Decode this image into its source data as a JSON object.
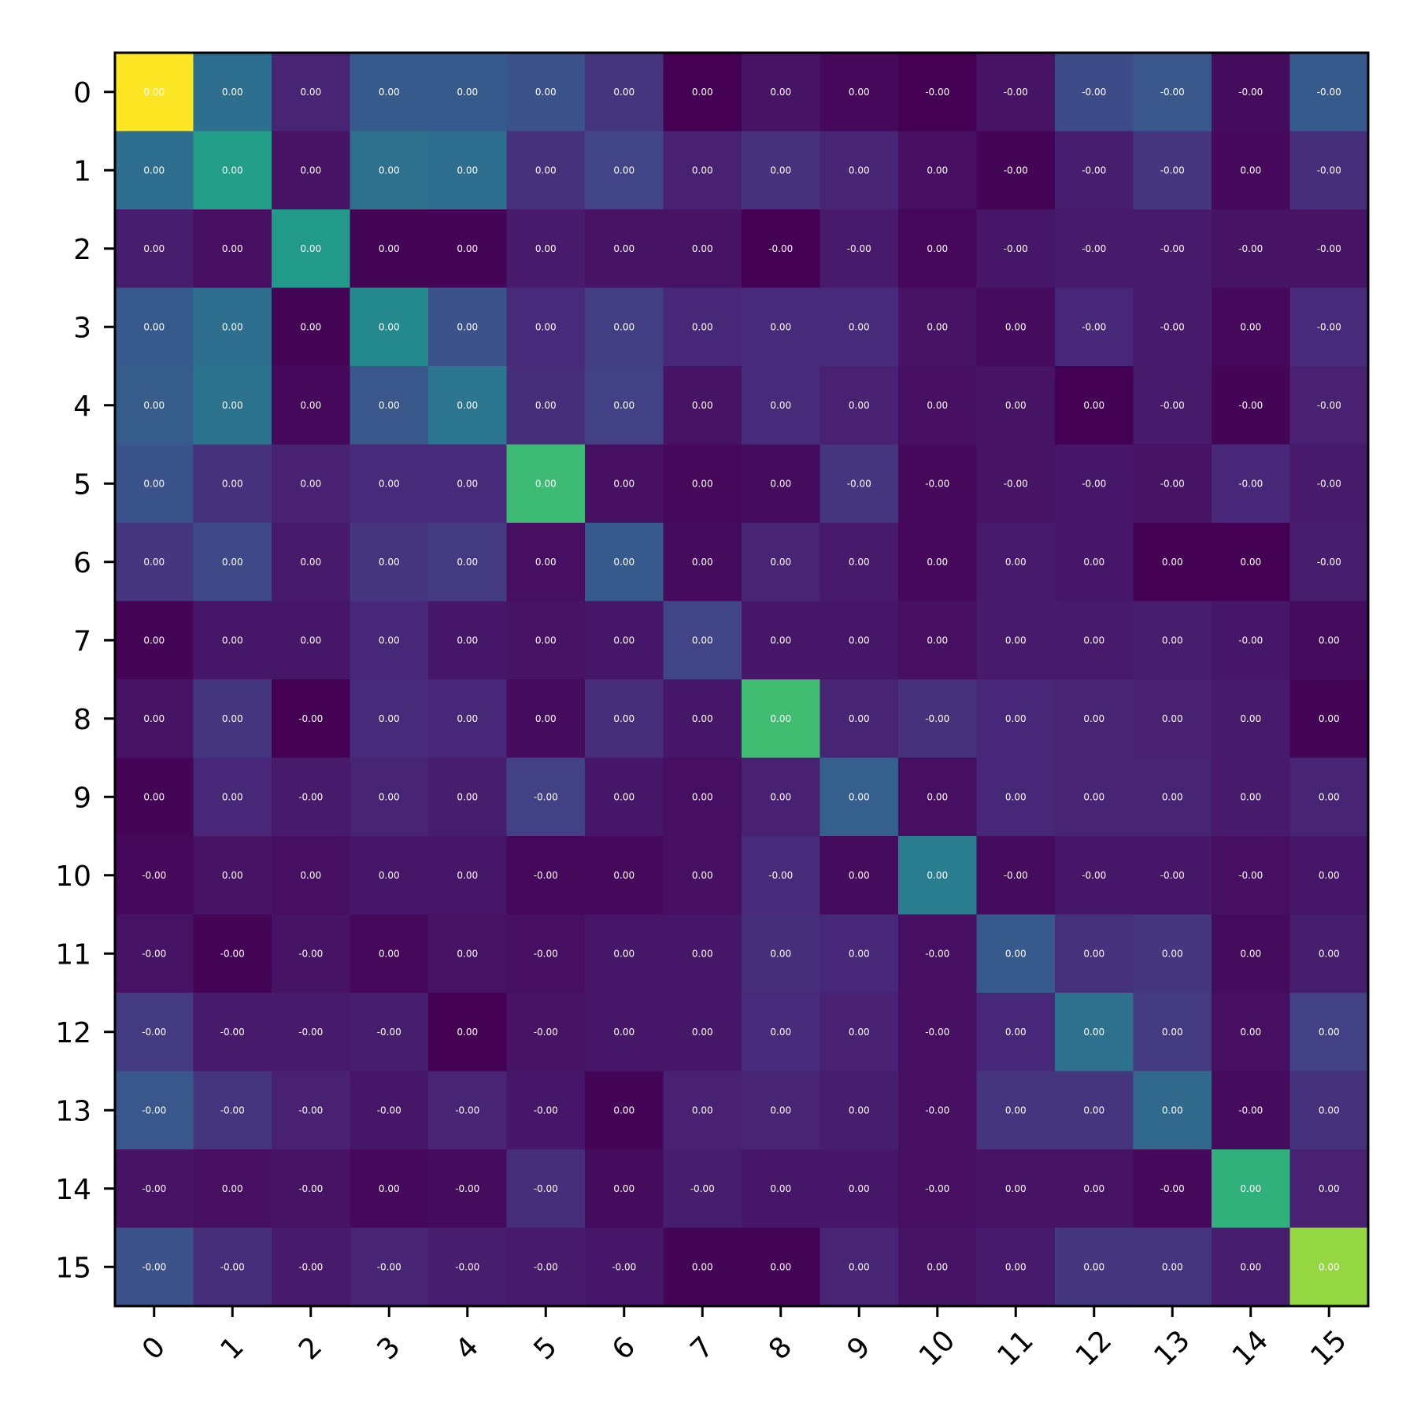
{
  "chart_data": {
    "type": "heatmap",
    "title": "",
    "xlabel": "",
    "ylabel": "",
    "colormap": "viridis",
    "grid": false,
    "x_tick_labels": [
      "0",
      "1",
      "2",
      "3",
      "4",
      "5",
      "6",
      "7",
      "8",
      "9",
      "10",
      "11",
      "12",
      "13",
      "14",
      "15"
    ],
    "y_tick_labels": [
      "0",
      "1",
      "2",
      "3",
      "4",
      "5",
      "6",
      "7",
      "8",
      "9",
      "10",
      "11",
      "12",
      "13",
      "14",
      "15"
    ],
    "cell_labels": [
      [
        "0.00",
        "0.00",
        "0.00",
        "0.00",
        "0.00",
        "0.00",
        "0.00",
        "0.00",
        "0.00",
        "0.00",
        "-0.00",
        "-0.00",
        "-0.00",
        "-0.00",
        "-0.00",
        "-0.00"
      ],
      [
        "0.00",
        "0.00",
        "0.00",
        "0.00",
        "0.00",
        "0.00",
        "0.00",
        "0.00",
        "0.00",
        "0.00",
        "0.00",
        "-0.00",
        "-0.00",
        "-0.00",
        "0.00",
        "-0.00"
      ],
      [
        "0.00",
        "0.00",
        "0.00",
        "0.00",
        "0.00",
        "0.00",
        "0.00",
        "0.00",
        "-0.00",
        "-0.00",
        "0.00",
        "-0.00",
        "-0.00",
        "-0.00",
        "-0.00",
        "-0.00"
      ],
      [
        "0.00",
        "0.00",
        "0.00",
        "0.00",
        "0.00",
        "0.00",
        "0.00",
        "0.00",
        "0.00",
        "0.00",
        "0.00",
        "0.00",
        "-0.00",
        "-0.00",
        "0.00",
        "-0.00"
      ],
      [
        "0.00",
        "0.00",
        "0.00",
        "0.00",
        "0.00",
        "0.00",
        "0.00",
        "0.00",
        "0.00",
        "0.00",
        "0.00",
        "0.00",
        "0.00",
        "-0.00",
        "-0.00",
        "-0.00"
      ],
      [
        "0.00",
        "0.00",
        "0.00",
        "0.00",
        "0.00",
        "0.00",
        "0.00",
        "0.00",
        "0.00",
        "-0.00",
        "-0.00",
        "-0.00",
        "-0.00",
        "-0.00",
        "-0.00",
        "-0.00"
      ],
      [
        "0.00",
        "0.00",
        "0.00",
        "0.00",
        "0.00",
        "0.00",
        "0.00",
        "0.00",
        "0.00",
        "0.00",
        "0.00",
        "0.00",
        "0.00",
        "0.00",
        "0.00",
        "-0.00"
      ],
      [
        "0.00",
        "0.00",
        "0.00",
        "0.00",
        "0.00",
        "0.00",
        "0.00",
        "0.00",
        "0.00",
        "0.00",
        "0.00",
        "0.00",
        "0.00",
        "0.00",
        "-0.00",
        "0.00"
      ],
      [
        "0.00",
        "0.00",
        "-0.00",
        "0.00",
        "0.00",
        "0.00",
        "0.00",
        "0.00",
        "0.00",
        "0.00",
        "-0.00",
        "0.00",
        "0.00",
        "0.00",
        "0.00",
        "0.00"
      ],
      [
        "0.00",
        "0.00",
        "-0.00",
        "0.00",
        "0.00",
        "-0.00",
        "0.00",
        "0.00",
        "0.00",
        "0.00",
        "0.00",
        "0.00",
        "0.00",
        "0.00",
        "0.00",
        "0.00"
      ],
      [
        "-0.00",
        "0.00",
        "0.00",
        "0.00",
        "0.00",
        "-0.00",
        "0.00",
        "0.00",
        "-0.00",
        "0.00",
        "0.00",
        "-0.00",
        "-0.00",
        "-0.00",
        "-0.00",
        "0.00"
      ],
      [
        "-0.00",
        "-0.00",
        "-0.00",
        "0.00",
        "0.00",
        "-0.00",
        "0.00",
        "0.00",
        "0.00",
        "0.00",
        "-0.00",
        "0.00",
        "0.00",
        "0.00",
        "0.00",
        "0.00"
      ],
      [
        "-0.00",
        "-0.00",
        "-0.00",
        "-0.00",
        "0.00",
        "-0.00",
        "0.00",
        "0.00",
        "0.00",
        "0.00",
        "-0.00",
        "0.00",
        "0.00",
        "0.00",
        "0.00",
        "0.00"
      ],
      [
        "-0.00",
        "-0.00",
        "-0.00",
        "-0.00",
        "-0.00",
        "-0.00",
        "0.00",
        "0.00",
        "0.00",
        "0.00",
        "-0.00",
        "0.00",
        "0.00",
        "0.00",
        "-0.00",
        "0.00"
      ],
      [
        "-0.00",
        "0.00",
        "-0.00",
        "0.00",
        "-0.00",
        "-0.00",
        "0.00",
        "-0.00",
        "0.00",
        "0.00",
        "-0.00",
        "0.00",
        "0.00",
        "-0.00",
        "0.00",
        "0.00"
      ],
      [
        "-0.00",
        "-0.00",
        "-0.00",
        "-0.00",
        "-0.00",
        "-0.00",
        "-0.00",
        "0.00",
        "0.00",
        "0.00",
        "0.00",
        "0.00",
        "0.00",
        "0.00",
        "0.00",
        "0.00"
      ]
    ],
    "intensity": [
      [
        1.0,
        0.36,
        0.1,
        0.28,
        0.28,
        0.25,
        0.15,
        0.0,
        0.05,
        0.02,
        0.0,
        0.05,
        0.23,
        0.27,
        0.03,
        0.28
      ],
      [
        0.36,
        0.55,
        0.05,
        0.37,
        0.36,
        0.14,
        0.2,
        0.09,
        0.14,
        0.1,
        0.04,
        0.01,
        0.08,
        0.16,
        0.02,
        0.13
      ],
      [
        0.08,
        0.04,
        0.54,
        0.01,
        0.01,
        0.07,
        0.05,
        0.05,
        0.0,
        0.07,
        0.02,
        0.06,
        0.07,
        0.07,
        0.05,
        0.05
      ],
      [
        0.28,
        0.36,
        0.01,
        0.47,
        0.25,
        0.12,
        0.18,
        0.11,
        0.12,
        0.12,
        0.05,
        0.03,
        0.11,
        0.07,
        0.02,
        0.12
      ],
      [
        0.29,
        0.38,
        0.02,
        0.27,
        0.39,
        0.13,
        0.19,
        0.05,
        0.12,
        0.09,
        0.04,
        0.05,
        0.0,
        0.07,
        0.01,
        0.09
      ],
      [
        0.26,
        0.14,
        0.09,
        0.12,
        0.12,
        0.68,
        0.04,
        0.02,
        0.03,
        0.15,
        0.02,
        0.05,
        0.06,
        0.05,
        0.11,
        0.07
      ],
      [
        0.16,
        0.22,
        0.07,
        0.15,
        0.17,
        0.04,
        0.28,
        0.03,
        0.1,
        0.07,
        0.02,
        0.07,
        0.06,
        0.0,
        0.0,
        0.08
      ],
      [
        0.01,
        0.06,
        0.06,
        0.11,
        0.06,
        0.05,
        0.06,
        0.2,
        0.06,
        0.06,
        0.04,
        0.07,
        0.07,
        0.08,
        0.06,
        0.03
      ],
      [
        0.05,
        0.16,
        0.0,
        0.12,
        0.11,
        0.03,
        0.13,
        0.06,
        0.69,
        0.1,
        0.14,
        0.11,
        0.1,
        0.09,
        0.07,
        0.01
      ],
      [
        0.01,
        0.11,
        0.07,
        0.1,
        0.08,
        0.19,
        0.06,
        0.04,
        0.09,
        0.3,
        0.04,
        0.11,
        0.1,
        0.1,
        0.07,
        0.1
      ],
      [
        0.02,
        0.05,
        0.04,
        0.06,
        0.06,
        0.02,
        0.02,
        0.04,
        0.12,
        0.03,
        0.42,
        0.03,
        0.06,
        0.06,
        0.04,
        0.06
      ],
      [
        0.05,
        0.01,
        0.05,
        0.02,
        0.05,
        0.04,
        0.06,
        0.06,
        0.13,
        0.11,
        0.04,
        0.28,
        0.14,
        0.16,
        0.03,
        0.08
      ],
      [
        0.17,
        0.07,
        0.07,
        0.08,
        0.0,
        0.05,
        0.06,
        0.06,
        0.12,
        0.09,
        0.04,
        0.11,
        0.37,
        0.17,
        0.04,
        0.19
      ],
      [
        0.27,
        0.15,
        0.09,
        0.06,
        0.1,
        0.06,
        0.01,
        0.09,
        0.1,
        0.08,
        0.04,
        0.15,
        0.15,
        0.34,
        0.03,
        0.14
      ],
      [
        0.05,
        0.04,
        0.05,
        0.02,
        0.03,
        0.13,
        0.03,
        0.08,
        0.06,
        0.06,
        0.04,
        0.05,
        0.05,
        0.02,
        0.64,
        0.09
      ],
      [
        0.25,
        0.13,
        0.07,
        0.1,
        0.08,
        0.07,
        0.06,
        0.01,
        0.01,
        0.1,
        0.05,
        0.07,
        0.16,
        0.15,
        0.08,
        0.84
      ]
    ]
  }
}
